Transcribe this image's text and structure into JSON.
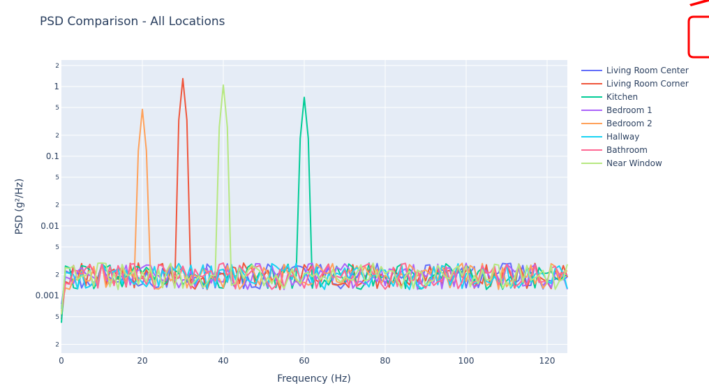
{
  "chart_data": {
    "type": "line",
    "title": "PSD Comparison - All Locations",
    "xlabel": "Frequency (Hz)",
    "ylabel": "PSD (g²/Hz)",
    "y_scale": "log",
    "xlim": [
      0,
      125
    ],
    "ylim": [
      0.00015,
      2.4
    ],
    "x_ticks": [
      {
        "value": 0,
        "label": "0"
      },
      {
        "value": 20,
        "label": "20"
      },
      {
        "value": 40,
        "label": "40"
      },
      {
        "value": 60,
        "label": "60"
      },
      {
        "value": 80,
        "label": "80"
      },
      {
        "value": 100,
        "label": "100"
      },
      {
        "value": 120,
        "label": "120"
      }
    ],
    "y_major_ticks": [
      {
        "value": 0.001,
        "label": "0.001"
      },
      {
        "value": 0.01,
        "label": "0.01"
      },
      {
        "value": 0.1,
        "label": "0.1"
      },
      {
        "value": 1,
        "label": "1"
      }
    ],
    "y_minor_ticks": [
      {
        "value": 0.0002,
        "label": "2"
      },
      {
        "value": 0.0005,
        "label": "5"
      },
      {
        "value": 0.002,
        "label": "2"
      },
      {
        "value": 0.005,
        "label": "5"
      },
      {
        "value": 0.02,
        "label": "2"
      },
      {
        "value": 0.05,
        "label": "5"
      },
      {
        "value": 0.2,
        "label": "2"
      },
      {
        "value": 0.5,
        "label": "5"
      },
      {
        "value": 2,
        "label": "2"
      }
    ],
    "grid": true,
    "legend_position": "right",
    "series": [
      {
        "name": "Living Room Center",
        "color": "#636efa",
        "baseline": 0.0019,
        "peaks": []
      },
      {
        "name": "Living Room Corner",
        "color": "#ef553b",
        "baseline": 0.0019,
        "peaks": [
          {
            "freq": 30,
            "value": 1.3
          },
          {
            "freq": 29,
            "value": 0.33
          },
          {
            "freq": 31,
            "value": 0.33
          }
        ]
      },
      {
        "name": "Kitchen",
        "color": "#00cc96",
        "baseline": 0.0019,
        "peaks": [
          {
            "freq": 60,
            "value": 0.7
          },
          {
            "freq": 59,
            "value": 0.18
          },
          {
            "freq": 61,
            "value": 0.18
          }
        ]
      },
      {
        "name": "Bedroom 1",
        "color": "#ab63fa",
        "baseline": 0.0019,
        "peaks": []
      },
      {
        "name": "Bedroom 2",
        "color": "#ffa15a",
        "baseline": 0.0019,
        "peaks": [
          {
            "freq": 20,
            "value": 0.47
          },
          {
            "freq": 19,
            "value": 0.12
          },
          {
            "freq": 21,
            "value": 0.12
          }
        ]
      },
      {
        "name": "Hallway",
        "color": "#19d3f3",
        "baseline": 0.0019,
        "peaks": []
      },
      {
        "name": "Bathroom",
        "color": "#ff6692",
        "baseline": 0.0019,
        "peaks": []
      },
      {
        "name": "Near Window",
        "color": "#b6e880",
        "baseline": 0.0019,
        "peaks": [
          {
            "freq": 40,
            "value": 1.05
          },
          {
            "freq": 39,
            "value": 0.26
          },
          {
            "freq": 41,
            "value": 0.26
          }
        ]
      }
    ]
  },
  "colors": {
    "plot_background": "#e5ecf6",
    "grid": "#ffffff",
    "text": "#2a3f5f",
    "annotation_shape": "#ff0000"
  }
}
